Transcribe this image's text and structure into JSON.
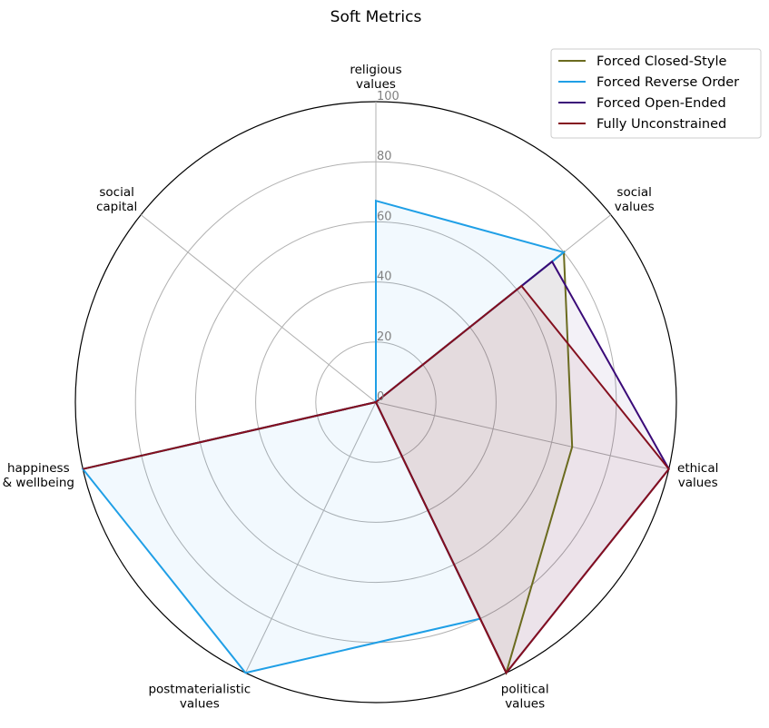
{
  "chart_data": {
    "type": "radar",
    "title": "Soft Metrics",
    "axes": [
      [
        "religious",
        "values"
      ],
      [
        "social",
        "values"
      ],
      [
        "ethical",
        "values"
      ],
      [
        "political",
        "values"
      ],
      [
        "postmaterialistic",
        "values"
      ],
      [
        "happiness",
        "& wellbeing"
      ],
      [
        "social",
        "capital"
      ]
    ],
    "rlim": [
      0,
      100
    ],
    "rticks": [
      0,
      20,
      40,
      60,
      80,
      100
    ],
    "grid": true,
    "legend_position": "top-right",
    "series": [
      {
        "name": "Forced Closed-Style",
        "color": "#6b6b1f",
        "values": [
          0,
          80,
          67,
          100,
          0,
          100,
          0
        ]
      },
      {
        "name": "Forced Reverse Order",
        "color": "#1f9fe6",
        "values": [
          67,
          80,
          0,
          80,
          100,
          100,
          0
        ]
      },
      {
        "name": "Forced Open-Ended",
        "color": "#3a0a78",
        "values": [
          0,
          75,
          100,
          100,
          0,
          67,
          0
        ]
      },
      {
        "name": "Fully Unconstrained",
        "color": "#84101f",
        "values": [
          0,
          62,
          100,
          100,
          0,
          100,
          0
        ]
      }
    ]
  }
}
